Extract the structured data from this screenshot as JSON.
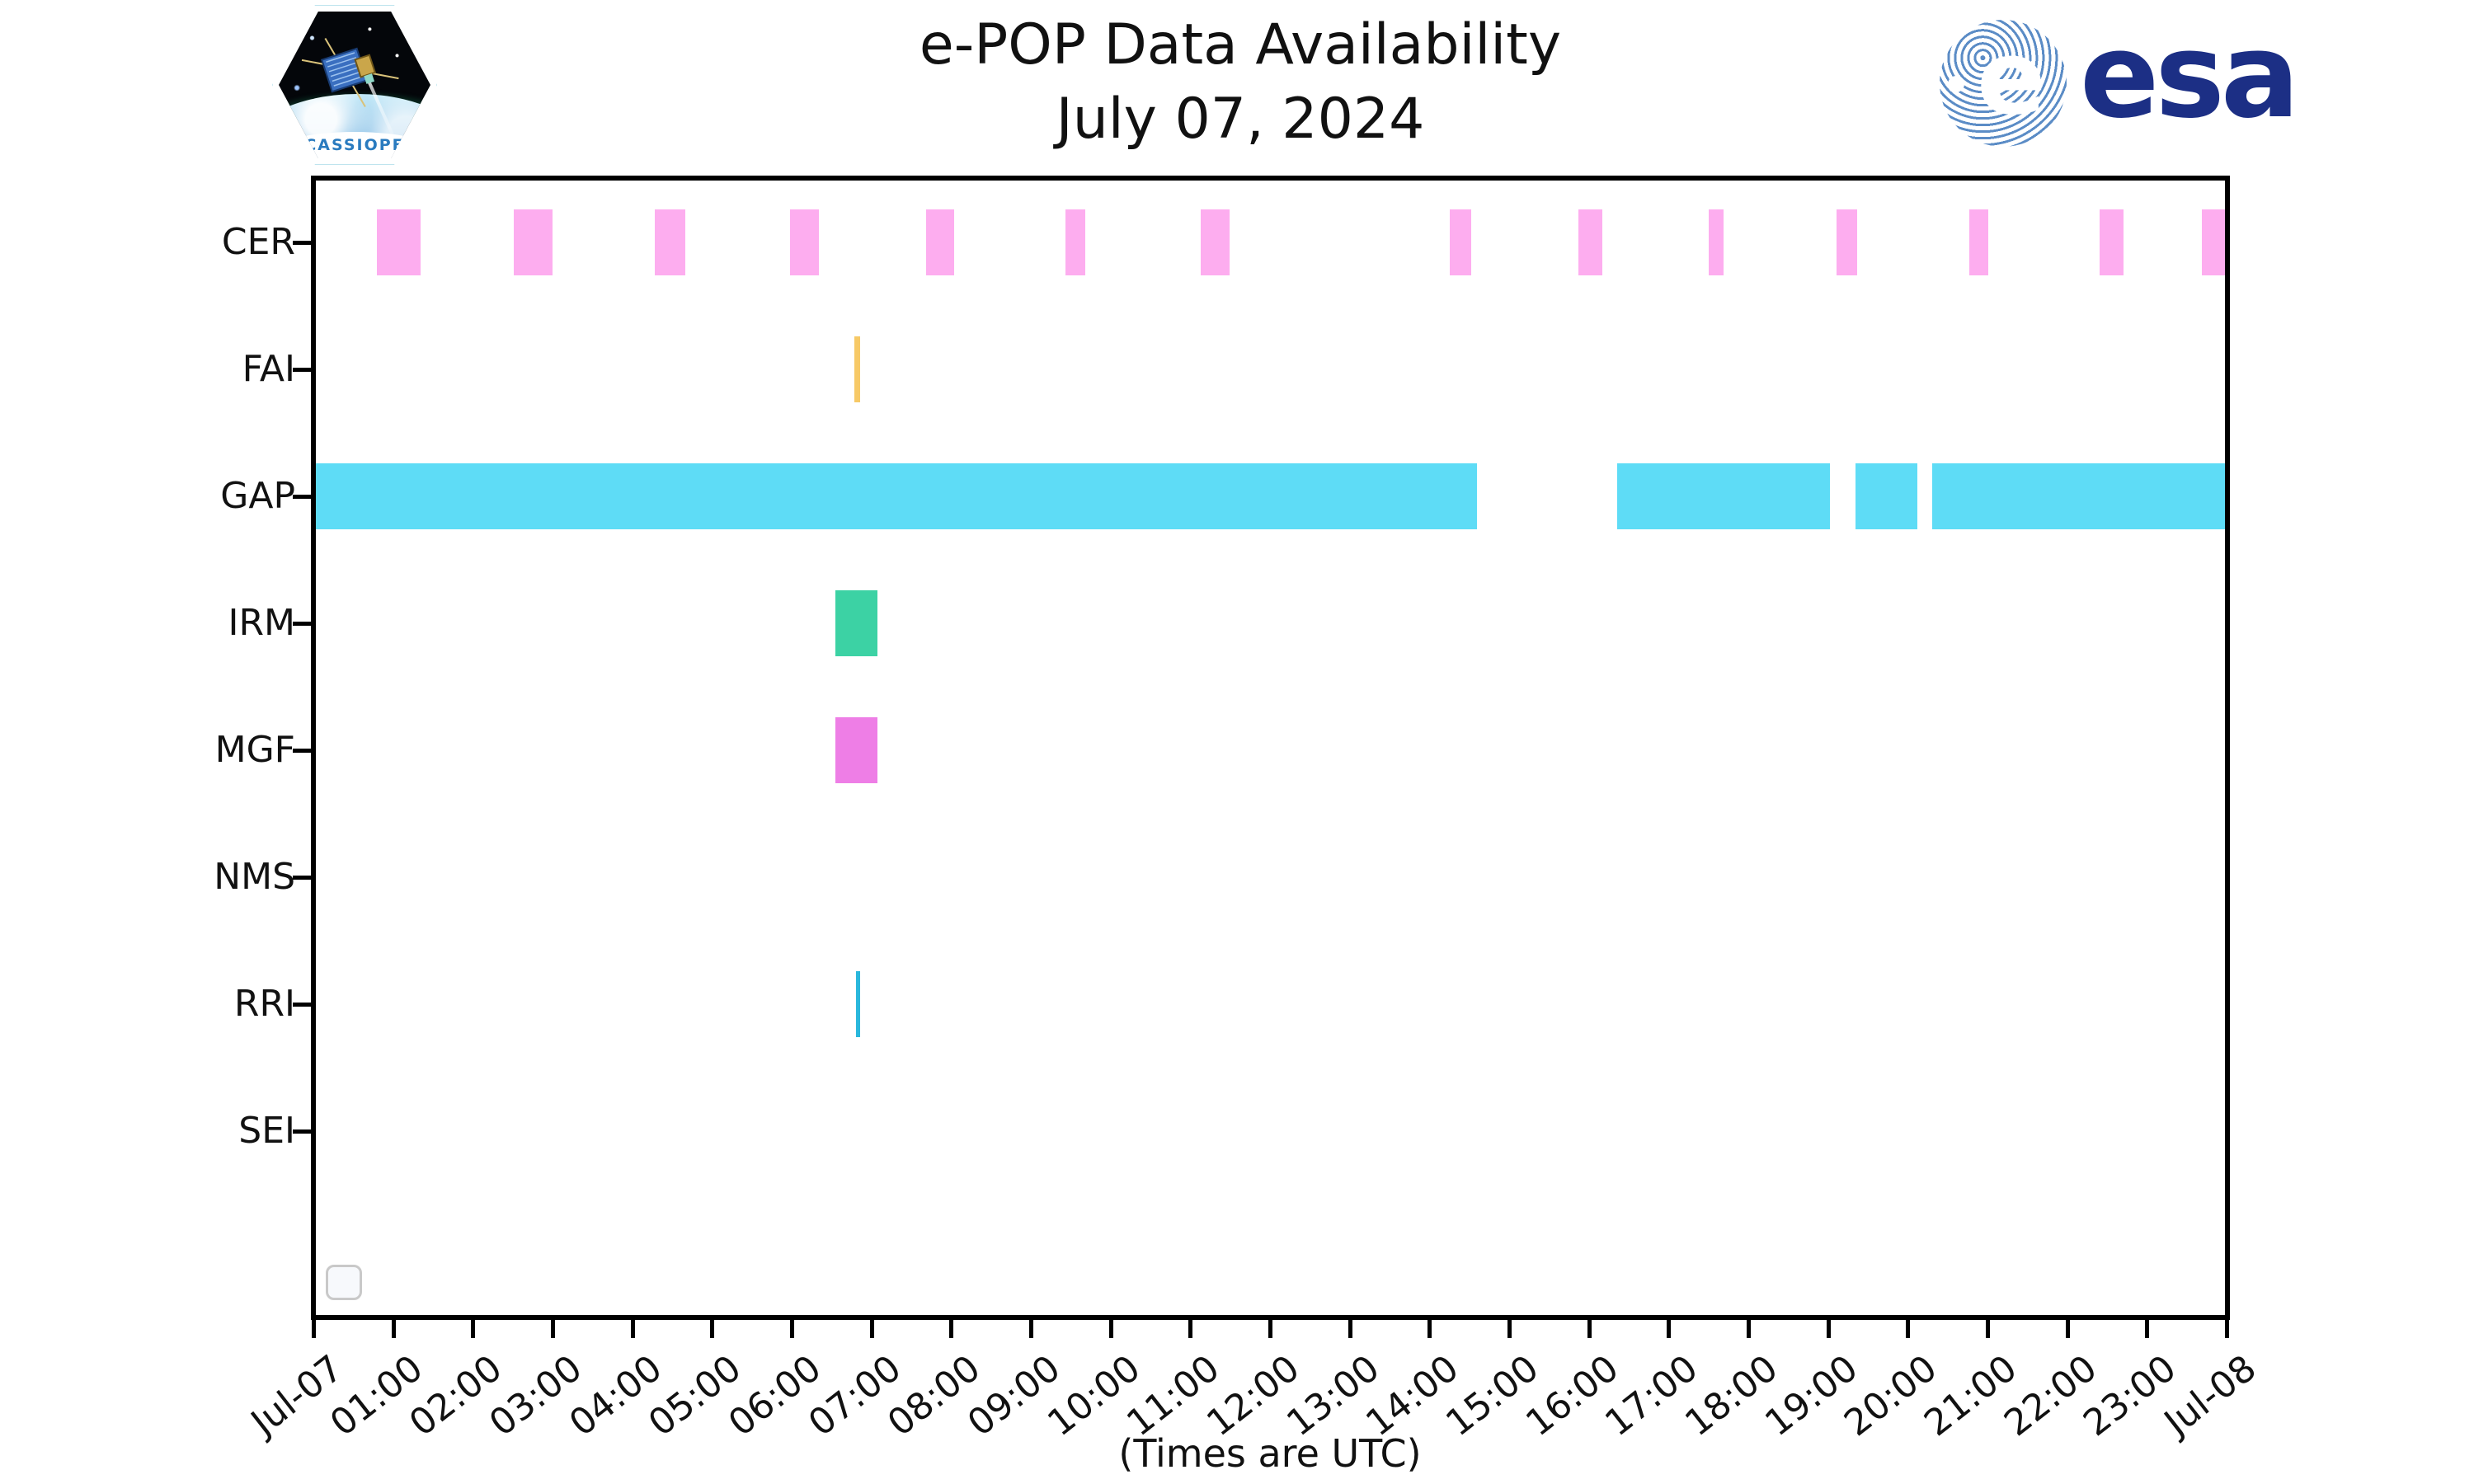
{
  "header": {
    "title_line1": "e-POP Data Availability",
    "title_line2": "July 07, 2024"
  },
  "logos": {
    "cassiope_label": "CASSIOPE",
    "esa_wordmark": "esa",
    "esa_brand_color": "#1c2f85",
    "esa_globe_color": "#5b8cc6"
  },
  "chart_data": {
    "type": "bar",
    "subtype": "timeline-availability",
    "title": "e-POP Data Availability",
    "subtitle": "July 07, 2024",
    "xlabel": "(Times are UTC)",
    "x_axis": {
      "range_hours": [
        0,
        24
      ],
      "tick_labels": [
        "Jul-07",
        "01:00",
        "02:00",
        "03:00",
        "04:00",
        "05:00",
        "06:00",
        "07:00",
        "08:00",
        "09:00",
        "10:00",
        "11:00",
        "12:00",
        "13:00",
        "14:00",
        "15:00",
        "16:00",
        "17:00",
        "18:00",
        "19:00",
        "20:00",
        "21:00",
        "22:00",
        "23:00",
        "Jul-08"
      ]
    },
    "rows": [
      {
        "label": "CER",
        "color": "#fdadef",
        "segments": [
          [
            0.8,
            1.34
          ],
          [
            2.51,
            3.0
          ],
          [
            4.28,
            4.67
          ],
          [
            5.98,
            6.34
          ],
          [
            7.69,
            8.04
          ],
          [
            9.43,
            9.68
          ],
          [
            11.13,
            11.49
          ],
          [
            14.25,
            14.52
          ],
          [
            15.87,
            16.17
          ],
          [
            17.5,
            17.69
          ],
          [
            19.11,
            19.37
          ],
          [
            20.77,
            21.01
          ],
          [
            22.41,
            22.71
          ],
          [
            23.69,
            24.0
          ]
        ]
      },
      {
        "label": "FAI",
        "color": "#f7c966",
        "segments": [
          [
            6.79,
            6.86
          ]
        ]
      },
      {
        "label": "GAP",
        "color": "#5edcf6",
        "segments": [
          [
            0.0,
            14.6
          ],
          [
            16.36,
            19.02
          ],
          [
            19.34,
            20.12
          ],
          [
            20.31,
            24.0
          ]
        ]
      },
      {
        "label": "IRM",
        "color": "#3cd2a4",
        "segments": [
          [
            6.55,
            7.08
          ]
        ]
      },
      {
        "label": "MGF",
        "color": "#ee7ee6",
        "segments": [
          [
            6.55,
            7.08
          ]
        ]
      },
      {
        "label": "NMS",
        "color": null,
        "segments": []
      },
      {
        "label": "RRI",
        "color": "#2ab7dc",
        "segments": [
          [
            6.81,
            6.86
          ]
        ]
      },
      {
        "label": "SEI",
        "color": null,
        "segments": []
      }
    ],
    "legend": {
      "visible": true,
      "entries": []
    },
    "grid": false
  }
}
